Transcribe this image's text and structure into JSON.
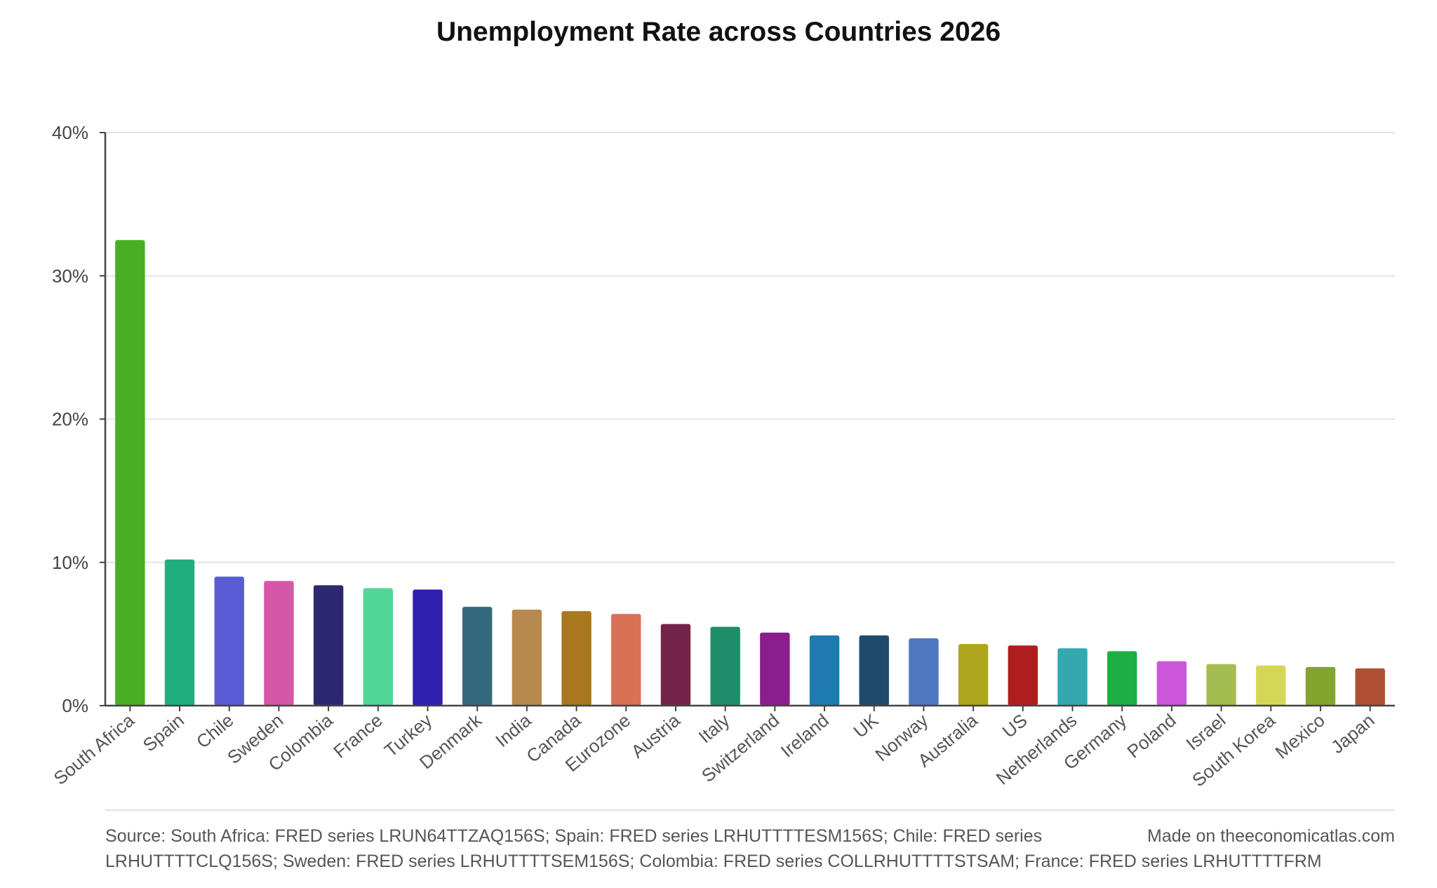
{
  "chart_data": {
    "type": "bar",
    "title": "Unemployment Rate across Countries 2026",
    "xlabel": "",
    "ylabel": "",
    "ylim": [
      0,
      40
    ],
    "y_ticks": [
      0,
      10,
      20,
      30,
      40
    ],
    "y_tick_labels": [
      "0%",
      "10%",
      "20%",
      "30%",
      "40%"
    ],
    "grid": true,
    "legend": "none",
    "categories": [
      "South Africa",
      "Spain",
      "Chile",
      "Sweden",
      "Colombia",
      "France",
      "Turkey",
      "Denmark",
      "India",
      "Canada",
      "Eurozone",
      "Austria",
      "Italy",
      "Switzerland",
      "Ireland",
      "UK",
      "Norway",
      "Australia",
      "US",
      "Netherlands",
      "Germany",
      "Poland",
      "Israel",
      "South Korea",
      "Mexico",
      "Japan"
    ],
    "values": [
      32.5,
      10.2,
      9.0,
      8.7,
      8.4,
      8.2,
      8.1,
      6.9,
      6.7,
      6.6,
      6.4,
      5.7,
      5.5,
      5.1,
      4.9,
      4.9,
      4.7,
      4.3,
      4.2,
      4.0,
      3.8,
      3.1,
      2.9,
      2.8,
      2.7,
      2.6
    ],
    "colors": [
      "#4aae24",
      "#1fae7e",
      "#5a5cd6",
      "#d656a8",
      "#2e2870",
      "#52d696",
      "#2e1fb0",
      "#356a7e",
      "#b8894e",
      "#a8771e",
      "#d97255",
      "#732447",
      "#1e8e6a",
      "#8a1e8e",
      "#1e7ab0",
      "#1e4a6e",
      "#4e78bf",
      "#aea51e",
      "#ae1e1e",
      "#33a8ae",
      "#1eae45",
      "#cc56d9",
      "#a5bd50",
      "#d6d656",
      "#83a52e",
      "#ae5033"
    ]
  },
  "footer": {
    "source_line1": "Source: South Africa: FRED series LRUN64TTZAQ156S; Spain: FRED series LRHUTTTTESM156S; Chile: FRED series",
    "source_line2": "LRHUTTTTCLQ156S; Sweden: FRED series LRHUTTTTSEM156S; Colombia: FRED series COLLRHUTTTTSTSAM; France: FRED series LRHUTTTTFRM",
    "made_on": "Made on theeconomicatlas.com"
  }
}
